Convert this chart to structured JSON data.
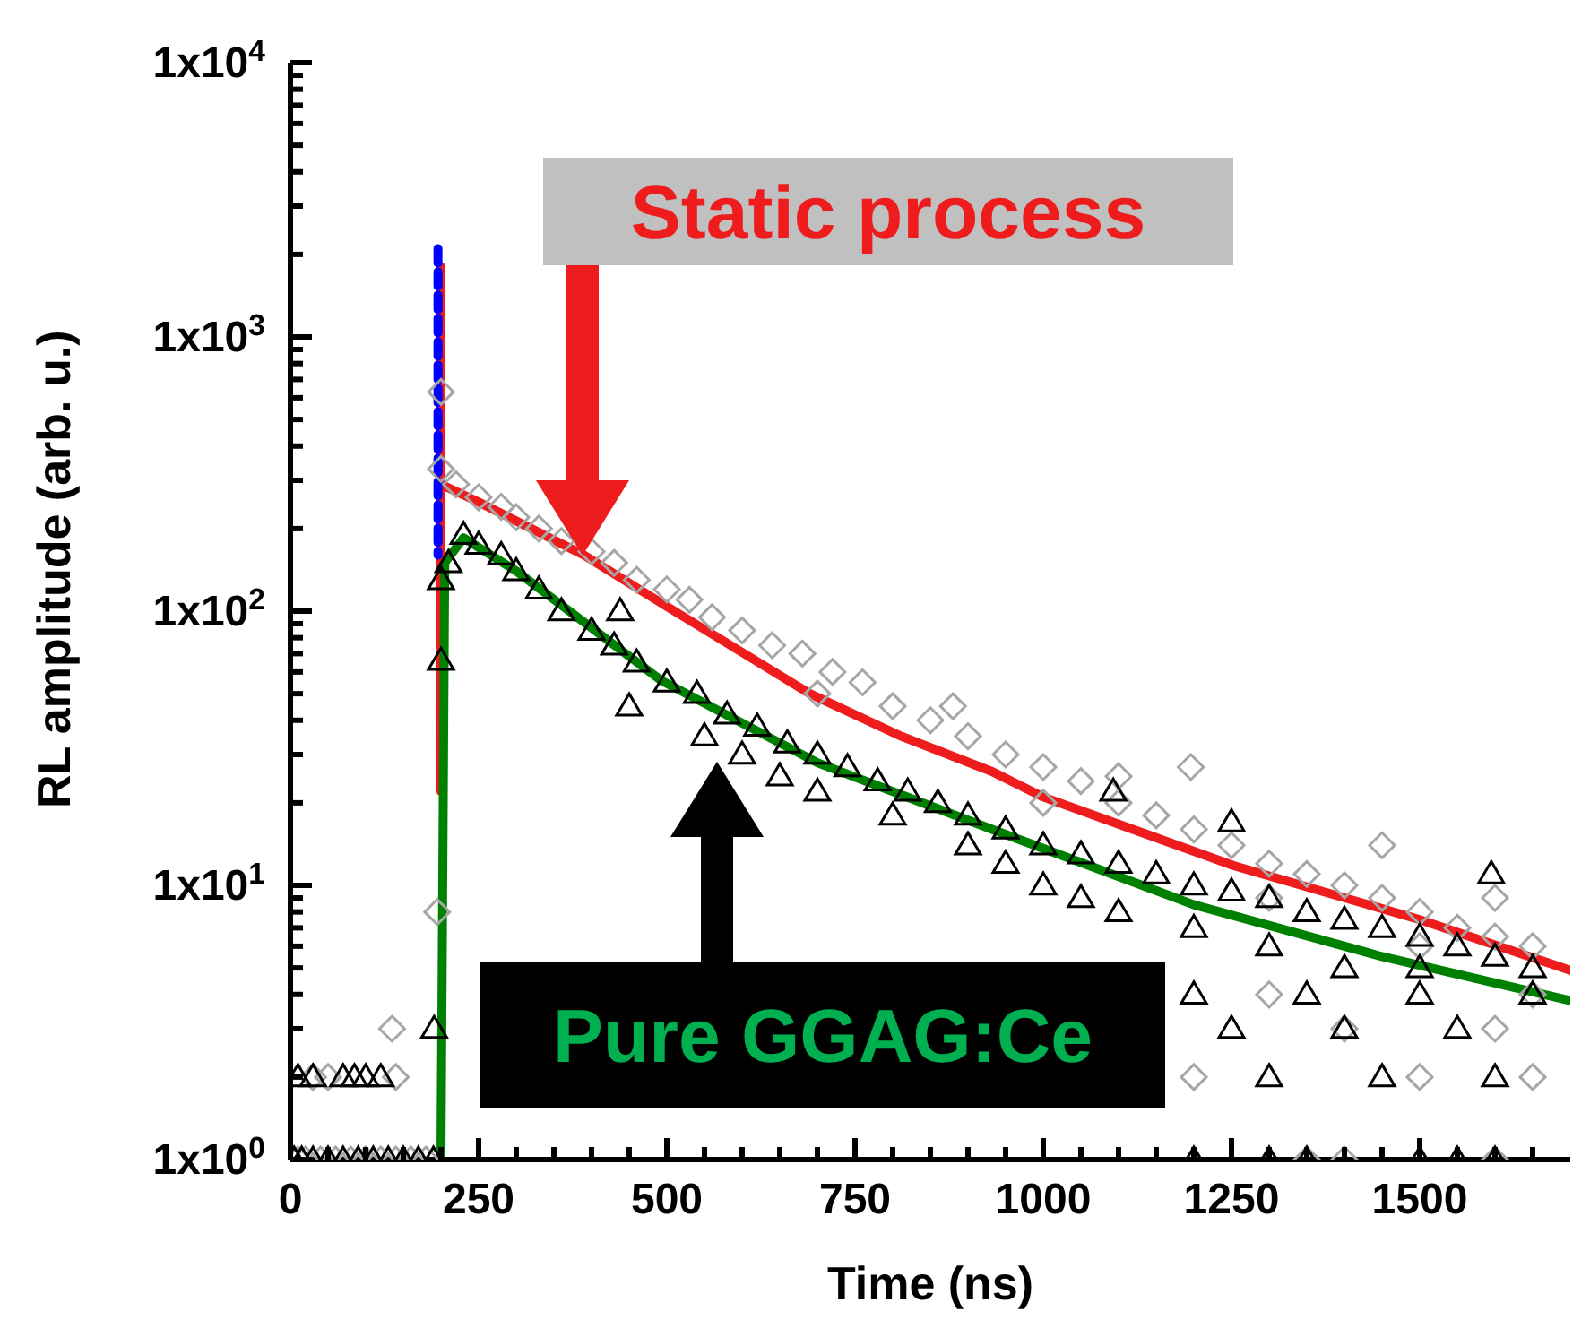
{
  "chart_data": {
    "type": "scatter",
    "xlabel": "Time (ns)",
    "ylabel": "RL amplitude (arb. u.)",
    "log": "y",
    "xlim": [
      0,
      1700
    ],
    "xticks": [
      0,
      {
        "value": 50,
        "label": null
      },
      {
        "value": 100,
        "label": null
      },
      {
        "value": 150,
        "label": null
      },
      {
        "value": 200,
        "label": null
      },
      250,
      {
        "value": 300,
        "label": null
      },
      {
        "value": 350,
        "label": null
      },
      {
        "value": 400,
        "label": null
      },
      {
        "value": 450,
        "label": null
      },
      500,
      {
        "value": 550,
        "label": null
      },
      {
        "value": 600,
        "label": null
      },
      {
        "value": 650,
        "label": null
      },
      {
        "value": 700,
        "label": null
      },
      750,
      {
        "value": 800,
        "label": null
      },
      {
        "value": 850,
        "label": null
      },
      {
        "value": 900,
        "label": null
      },
      {
        "value": 950,
        "label": null
      },
      1000,
      {
        "value": 1050,
        "label": null
      },
      {
        "value": 1100,
        "label": null
      },
      {
        "value": 1150,
        "label": null
      },
      {
        "value": 1200,
        "label": null
      },
      1250,
      {
        "value": 1300,
        "label": null
      },
      {
        "value": 1350,
        "label": null
      },
      {
        "value": 1400,
        "label": null
      },
      {
        "value": 1450,
        "label": null
      },
      1500,
      {
        "value": 1550,
        "label": null
      },
      {
        "value": 1600,
        "label": null
      },
      {
        "value": 1650,
        "label": null
      }
    ],
    "ylim": [
      1,
      10000
    ],
    "yticks": [
      {
        "value": 1,
        "label": "1x10$^{0}$"
      },
      {
        "value": 2,
        "label": null
      },
      {
        "value": 3,
        "label": null
      },
      {
        "value": 4,
        "label": null
      },
      {
        "value": 5,
        "label": null
      },
      {
        "value": 6,
        "label": null
      },
      {
        "value": 7,
        "label": null
      },
      {
        "value": 8,
        "label": null
      },
      {
        "value": 9,
        "label": null
      },
      {
        "value": 10,
        "label": "1x10$^{1}$"
      },
      {
        "value": 20,
        "label": null
      },
      {
        "value": 30,
        "label": null
      },
      {
        "value": 40,
        "label": null
      },
      {
        "value": 50,
        "label": null
      },
      {
        "value": 60,
        "label": null
      },
      {
        "value": 70,
        "label": null
      },
      {
        "value": 80,
        "label": null
      },
      {
        "value": 90,
        "label": null
      },
      {
        "value": 100,
        "label": "1x10$^{2}$"
      },
      {
        "value": 200,
        "label": null
      },
      {
        "value": 300,
        "label": null
      },
      {
        "value": 400,
        "label": null
      },
      {
        "value": 500,
        "label": null
      },
      {
        "value": 600,
        "label": null
      },
      {
        "value": 700,
        "label": null
      },
      {
        "value": 800,
        "label": null
      },
      {
        "value": 900,
        "label": null
      },
      {
        "value": 1000,
        "label": "1x10$^{3}$"
      },
      {
        "value": 2000,
        "label": null
      },
      {
        "value": 3000,
        "label": null
      },
      {
        "value": 4000,
        "label": null
      },
      {
        "value": 5000,
        "label": null
      },
      {
        "value": 6000,
        "label": null
      },
      {
        "value": 7000,
        "label": null
      },
      {
        "value": 8000,
        "label": null
      },
      {
        "value": 9000,
        "label": null
      },
      {
        "value": 10000,
        "label": "1x10$^{4}$"
      }
    ],
    "series": [
      {
        "marker": "diamond",
        "color": "#a6a6a6",
        "x": [
          10,
          20,
          40,
          60,
          80,
          100,
          120,
          140,
          160,
          180,
          30,
          50,
          140,
          135,
          195,
          200,
          200,
          220,
          250,
          280,
          300,
          330,
          360,
          400,
          430,
          460,
          500,
          530,
          560,
          600,
          640,
          680,
          720,
          760,
          800,
          850,
          900,
          950,
          1000,
          1050,
          1100,
          1150,
          1200,
          1250,
          1300,
          1350,
          1400,
          1450,
          1500,
          1550,
          1600,
          1650,
          880,
          1100,
          1196,
          1450,
          1600,
          700,
          1000,
          1300,
          1500,
          1650,
          1200,
          1300,
          1400,
          1500,
          1600,
          1650,
          1350,
          1400,
          1600
        ],
        "values": [
          1,
          1,
          1,
          1,
          1,
          1,
          1,
          1,
          1,
          1,
          2,
          2,
          2,
          3,
          8,
          630,
          330,
          290,
          260,
          240,
          220,
          200,
          180,
          165,
          150,
          130,
          120,
          110,
          95,
          85,
          75,
          70,
          60,
          55,
          45,
          40,
          35,
          30,
          27,
          24,
          20,
          18,
          16,
          14,
          12,
          11,
          10,
          9,
          8,
          7,
          6.5,
          6,
          45,
          25,
          27,
          14,
          9,
          50,
          20,
          9,
          6,
          4,
          2,
          4,
          3,
          2,
          3,
          2,
          1,
          1,
          1
        ]
      },
      {
        "marker": "triangle",
        "color": "#000000",
        "x": [
          5,
          15,
          30,
          50,
          70,
          90,
          110,
          130,
          150,
          170,
          190,
          10,
          30,
          70,
          85,
          100,
          120,
          191,
          200,
          200,
          210,
          230,
          250,
          280,
          300,
          330,
          360,
          400,
          430,
          460,
          500,
          540,
          580,
          620,
          660,
          700,
          740,
          780,
          820,
          860,
          900,
          950,
          1000,
          1050,
          1100,
          1150,
          1200,
          1250,
          1300,
          1350,
          1400,
          1450,
          1500,
          1550,
          1600,
          1650,
          450,
          550,
          600,
          650,
          700,
          800,
          900,
          950,
          1000,
          1050,
          1100,
          1200,
          1300,
          1400,
          1500,
          1200,
          1250,
          1300,
          1350,
          1400,
          1450,
          1500,
          1550,
          1600,
          1650,
          438,
          1093,
          1250,
          1595,
          1200,
          1300,
          1350,
          1500,
          1550,
          1600
        ],
        "values": [
          1,
          1,
          1,
          1,
          1,
          1,
          1,
          1,
          1,
          1,
          1,
          2,
          2,
          2,
          2,
          2,
          2,
          3,
          66,
          130,
          150,
          190,
          175,
          160,
          140,
          120,
          100,
          85,
          75,
          65,
          55,
          50,
          42,
          38,
          33,
          30,
          27,
          24,
          22,
          20,
          18,
          16,
          14,
          13,
          12,
          11,
          10,
          9.5,
          9,
          8,
          7.5,
          7,
          6.5,
          6,
          5.5,
          5,
          45,
          35,
          30,
          25,
          22,
          18,
          14,
          12,
          10,
          9,
          8,
          7,
          6,
          5,
          5,
          4,
          3,
          2,
          4,
          3,
          2,
          4,
          3,
          2,
          4,
          100,
          22,
          17,
          11,
          1,
          1,
          1,
          1,
          1,
          1
        ]
      },
      {
        "type": "line",
        "line_style": "solid",
        "color": "#ee1c1c",
        "x": [
          200,
          200,
          200,
          250,
          390,
          500,
          690,
          811,
          932,
          1000,
          1253,
          1500,
          1700
        ],
        "values": [
          22,
          1800,
          290,
          250,
          160,
          104,
          50,
          35,
          26,
          21,
          11.8,
          7.5,
          4.9
        ]
      },
      {
        "type": "line",
        "line_style": "solid",
        "color": "#008000",
        "x": [
          200,
          205,
          230,
          300,
          492,
          700,
          932,
          1200,
          1450,
          1700
        ],
        "values": [
          1,
          150,
          185,
          140,
          56,
          28,
          16,
          8.5,
          5.5,
          3.8
        ]
      },
      {
        "type": "line",
        "line_style": "dashed",
        "color": "#0000ff",
        "x": [
          196,
          196
        ],
        "values": [
          2100,
          160
        ]
      }
    ],
    "annotations": [
      "Static process",
      "Pure GGAG:Ce"
    ]
  }
}
